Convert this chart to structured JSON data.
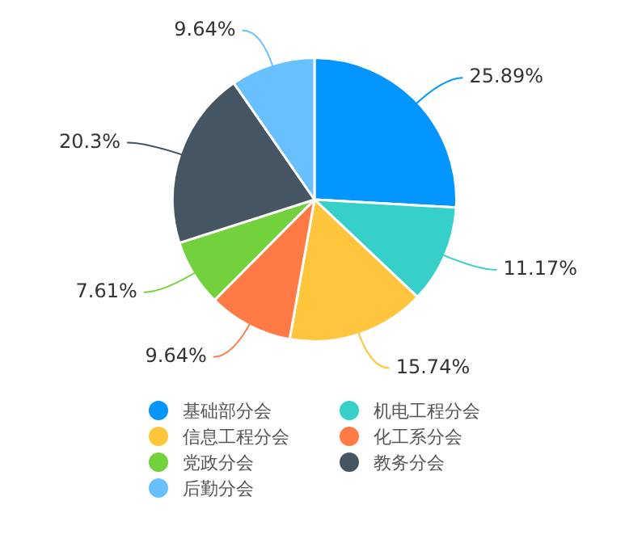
{
  "chart_data": {
    "type": "pie",
    "categories": [
      "基础部分会",
      "机电工程分会",
      "信息工程分会",
      "化工系分会",
      "党政分会",
      "教务分会",
      "后勤分会"
    ],
    "values": [
      25.89,
      11.17,
      15.74,
      9.64,
      7.61,
      20.3,
      9.64
    ],
    "colors": [
      "#0396ff",
      "#36cfc9",
      "#ffc53d",
      "#ff7a45",
      "#73d13d",
      "#455561",
      "#69c0ff"
    ],
    "value_labels": [
      "25.89%",
      "11.17%",
      "15.74%",
      "9.64%",
      "7.61%",
      "20.3%",
      "9.64%"
    ],
    "legend": "bottom"
  }
}
